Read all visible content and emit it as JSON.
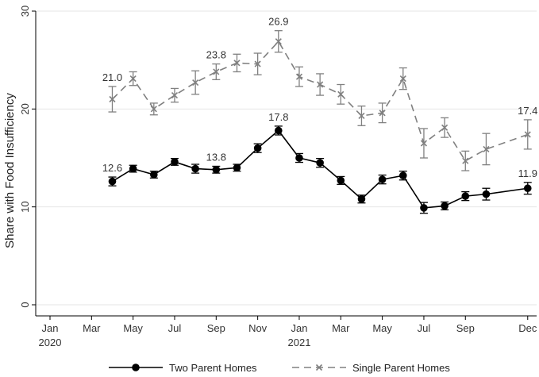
{
  "chart_data": {
    "type": "line",
    "title": "",
    "xlabel": "",
    "ylabel": "Share with Food Insufficiency",
    "ylim": [
      0,
      30
    ],
    "yticks": [
      0,
      10,
      20,
      30
    ],
    "xlim": [
      0,
      23.2
    ],
    "xticks": [
      {
        "x": 0,
        "label": "Jan",
        "sublabel": "2020"
      },
      {
        "x": 2,
        "label": "Mar",
        "sublabel": ""
      },
      {
        "x": 4,
        "label": "May",
        "sublabel": ""
      },
      {
        "x": 6,
        "label": "Jul",
        "sublabel": ""
      },
      {
        "x": 8,
        "label": "Sep",
        "sublabel": ""
      },
      {
        "x": 10,
        "label": "Nov",
        "sublabel": ""
      },
      {
        "x": 12,
        "label": "Jan",
        "sublabel": "2021"
      },
      {
        "x": 14,
        "label": "Mar",
        "sublabel": ""
      },
      {
        "x": 16,
        "label": "May",
        "sublabel": ""
      },
      {
        "x": 18,
        "label": "Jul",
        "sublabel": ""
      },
      {
        "x": 20,
        "label": "Sep",
        "sublabel": ""
      },
      {
        "x": 23,
        "label": "Dec",
        "sublabel": ""
      }
    ],
    "grid": true,
    "legend_position": "bottom",
    "series": [
      {
        "name": "Two Parent Homes",
        "color": "#000000",
        "style": "solid",
        "marker": "circle",
        "x": [
          3,
          4,
          5,
          6,
          7,
          8,
          9,
          10,
          11,
          12,
          13,
          14,
          15,
          16,
          17,
          18,
          19,
          20,
          21,
          23
        ],
        "values": [
          12.6,
          13.9,
          13.3,
          14.6,
          13.9,
          13.8,
          14.0,
          16.0,
          17.8,
          15.0,
          14.5,
          12.7,
          10.8,
          12.8,
          13.2,
          9.9,
          10.1,
          11.1,
          11.3,
          11.9
        ],
        "ci": [
          0.45,
          0.35,
          0.35,
          0.35,
          0.45,
          0.35,
          0.35,
          0.45,
          0.45,
          0.45,
          0.45,
          0.4,
          0.4,
          0.45,
          0.45,
          0.55,
          0.4,
          0.45,
          0.6,
          0.6
        ]
      },
      {
        "name": "Single Parent Homes",
        "color": "#808080",
        "style": "dashed",
        "marker": "x",
        "x": [
          3,
          4,
          5,
          6,
          7,
          8,
          9,
          10,
          11,
          12,
          13,
          14,
          15,
          16,
          17,
          18,
          19,
          20,
          21,
          23
        ],
        "values": [
          21.0,
          23.1,
          20.0,
          21.4,
          22.7,
          23.8,
          24.7,
          24.6,
          26.9,
          23.3,
          22.5,
          21.5,
          19.3,
          19.6,
          23.1,
          16.5,
          18.1,
          14.7,
          15.9,
          17.4
        ],
        "ci": [
          1.3,
          0.7,
          0.6,
          0.7,
          1.2,
          0.8,
          0.9,
          1.1,
          1.1,
          1.0,
          1.1,
          1.0,
          1.0,
          1.0,
          1.1,
          1.5,
          1.0,
          1.0,
          1.6,
          1.5
        ]
      }
    ],
    "annotations": [
      {
        "series": 0,
        "x": 3,
        "text": "12.6"
      },
      {
        "series": 0,
        "x": 8,
        "text": "13.8"
      },
      {
        "series": 0,
        "x": 11,
        "text": "17.8"
      },
      {
        "series": 0,
        "x": 23,
        "text": "11.9"
      },
      {
        "series": 1,
        "x": 3,
        "text": "21.0"
      },
      {
        "series": 1,
        "x": 8,
        "text": "23.8"
      },
      {
        "series": 1,
        "x": 11,
        "text": "26.9"
      },
      {
        "series": 1,
        "x": 23,
        "text": "17.4"
      }
    ]
  }
}
